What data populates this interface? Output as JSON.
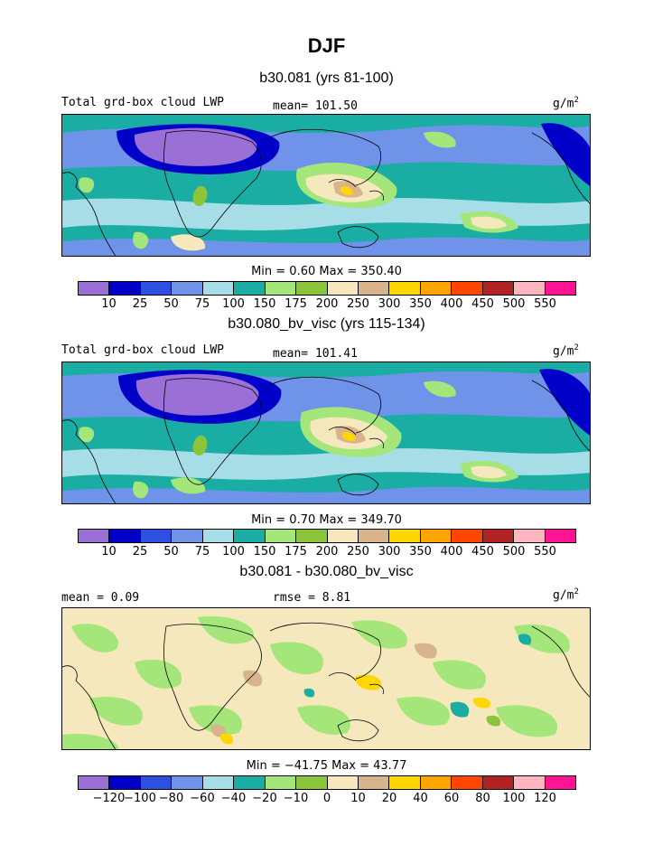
{
  "page": {
    "title": "DJF"
  },
  "chart_data": [
    {
      "type": "heatmap",
      "title": "b30.081 (yrs 81-100)",
      "left_label": "Total grd-box cloud LWP",
      "center_label": "mean= 101.50",
      "units": "g/m",
      "units_superscript": "2",
      "minmax_label": "Min =    0.60 Max = 350.40",
      "min": 0.6,
      "max": 350.4,
      "mean": 101.5,
      "colorbar_levels": [
        "10",
        "25",
        "50",
        "75",
        "100",
        "150",
        "175",
        "200",
        "250",
        "300",
        "350",
        "400",
        "450",
        "500",
        "550"
      ]
    },
    {
      "type": "heatmap",
      "title": "b30.080_bv_visc (yrs 115-134)",
      "left_label": "Total grd-box cloud LWP",
      "center_label": "mean= 101.41",
      "units": "g/m",
      "units_superscript": "2",
      "minmax_label": "Min =    0.70 Max = 349.70",
      "min": 0.7,
      "max": 349.7,
      "mean": 101.41,
      "colorbar_levels": [
        "10",
        "25",
        "50",
        "75",
        "100",
        "150",
        "175",
        "200",
        "250",
        "300",
        "350",
        "400",
        "450",
        "500",
        "550"
      ]
    },
    {
      "type": "heatmap",
      "title": "b30.081 - b30.080_bv_visc",
      "left_label": "mean =    0.09",
      "center_label": "rmse =    8.81",
      "units": "g/m",
      "units_superscript": "2",
      "minmax_label": "Min = −41.75 Max =  43.77",
      "min": -41.75,
      "max": 43.77,
      "mean": 0.09,
      "rmse": 8.81,
      "colorbar_levels": [
        "−120",
        "−100",
        "−80",
        "−60",
        "−40",
        "−20",
        "−10",
        "0",
        "10",
        "20",
        "40",
        "60",
        "80",
        "100",
        "120"
      ]
    }
  ],
  "colorbar_colors": [
    "#9a6fd6",
    "#0000c8",
    "#2d50e0",
    "#6f93e8",
    "#a7dde6",
    "#1aada4",
    "#a4e67a",
    "#8cc43c",
    "#f5e8bc",
    "#d8b48c",
    "#ffd700",
    "#ffa500",
    "#ff4500",
    "#b22222",
    "#ffb6c1",
    "#ff1493"
  ]
}
